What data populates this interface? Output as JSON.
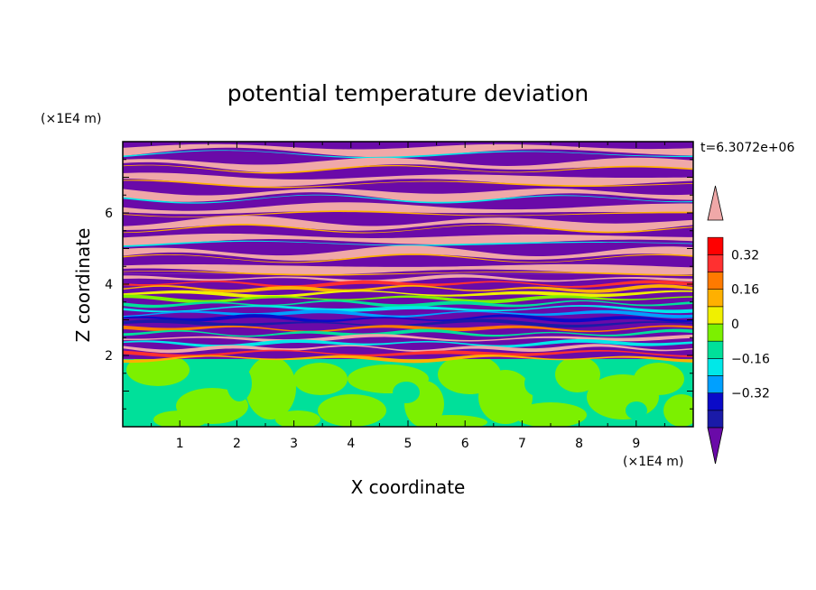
{
  "chart_data": {
    "type": "heatmap",
    "title": "potential temperature deviation",
    "xlabel": "X coordinate",
    "ylabel": "Z coordinate",
    "x_unit": "(×1E4 m)",
    "y_unit": "(×1E4 m)",
    "time_label": "t=6.3072e+06",
    "xlim": [
      0,
      10
    ],
    "ylim": [
      0,
      8
    ],
    "x_ticks": [
      1,
      2,
      3,
      4,
      5,
      6,
      7,
      8,
      9
    ],
    "y_ticks": [
      2,
      4,
      6
    ],
    "colorbar": {
      "ticks": [
        "0.32",
        "0.16",
        "0",
        "-0.16",
        "-0.32"
      ],
      "tick_values": [
        0.32,
        0.16,
        0,
        -0.16,
        -0.32
      ],
      "levels": [
        -0.48,
        -0.4,
        -0.32,
        -0.24,
        -0.16,
        -0.08,
        0,
        0.08,
        0.16,
        0.24,
        0.32,
        0.4,
        0.48
      ],
      "colors": [
        "#6a0aa8",
        "#1a1aa8",
        "#0a0ac8",
        "#00a0ff",
        "#00e8e8",
        "#00e09a",
        "#7cf000",
        "#f0f000",
        "#ffb000",
        "#ff7a00",
        "#ff3030",
        "#ff0000",
        "#f0a8a8"
      ],
      "extend": "both"
    },
    "regions": [
      {
        "zmin": 0.0,
        "zmax": 1.9,
        "pattern": "mottled mix of 0 to -0.08 (green) and 0 to 0.08 (light green)"
      },
      {
        "zmin": 1.9,
        "zmax": 4.3,
        "pattern": "thin wavy layers spanning full range, mostly purple with green, blue, orange, red streaks"
      },
      {
        "zmin": 4.3,
        "zmax": 8.0,
        "pattern": "alternating horizontal bands of saturated positive (pink) and saturated negative (purple)"
      }
    ]
  }
}
